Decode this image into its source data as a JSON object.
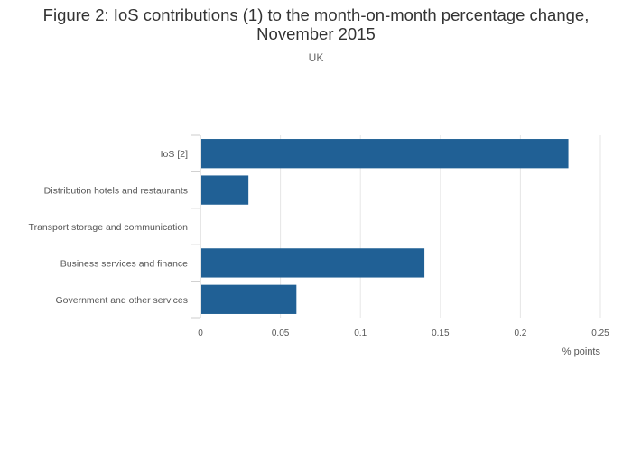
{
  "chart_data": {
    "type": "bar",
    "orientation": "horizontal",
    "title_line1": "Figure 2: IoS contributions (1) to the month-on-month percentage change,",
    "title_line2": "November 2015",
    "subtitle": "UK",
    "categories": [
      "IoS [2]",
      "Distribution hotels and restaurants",
      "Transport storage and communication",
      "Business services and finance",
      "Government and other services"
    ],
    "values": [
      0.23,
      0.03,
      0.0,
      0.14,
      0.06
    ],
    "xlabel": "% points",
    "xlim": [
      0,
      0.25
    ],
    "xticks": [
      "0",
      "0.05",
      "0.1",
      "0.15",
      "0.2",
      "0.25"
    ],
    "grid": "vertical",
    "bar_color": "#206095"
  }
}
